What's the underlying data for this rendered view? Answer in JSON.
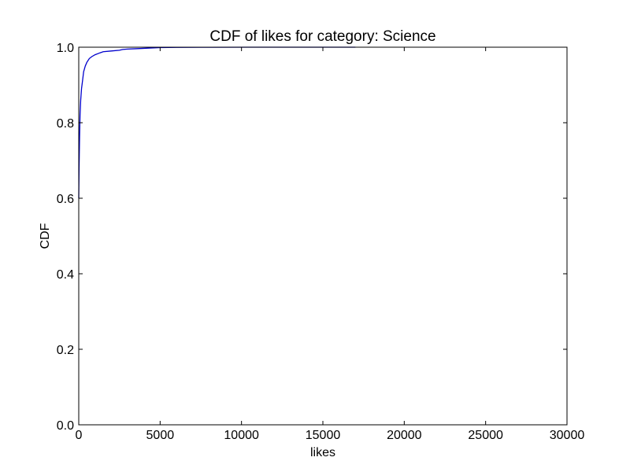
{
  "chart_data": {
    "type": "line",
    "title": "CDF of likes for category: Science",
    "xlabel": "likes",
    "ylabel": "CDF",
    "xlim": [
      0,
      30000
    ],
    "ylim": [
      0.0,
      1.0
    ],
    "grid": false,
    "x_ticks": [
      0,
      5000,
      10000,
      15000,
      20000,
      25000,
      30000
    ],
    "x_tick_labels": [
      "0",
      "5000",
      "10000",
      "15000",
      "20000",
      "25000",
      "30000"
    ],
    "y_ticks": [
      0.0,
      0.2,
      0.4,
      0.6,
      0.8,
      1.0
    ],
    "y_tick_labels": [
      "0.0",
      "0.2",
      "0.4",
      "0.6",
      "0.8",
      "1.0"
    ],
    "series": [
      {
        "color": "#0000cc",
        "x": [
          0,
          20,
          50,
          80,
          120,
          170,
          230,
          300,
          400,
          500,
          650,
          800,
          1000,
          1300,
          1500,
          2000,
          2500,
          2700,
          3000,
          3500,
          4000,
          4500,
          5000,
          6000,
          8000,
          10500,
          12000,
          17000
        ],
        "y": [
          0.6,
          0.68,
          0.76,
          0.82,
          0.86,
          0.89,
          0.91,
          0.935,
          0.95,
          0.96,
          0.97,
          0.975,
          0.98,
          0.985,
          0.988,
          0.99,
          0.992,
          0.994,
          0.995,
          0.996,
          0.997,
          0.998,
          0.999,
          0.9995,
          0.9998,
          1.0,
          1.0,
          1.0
        ]
      }
    ]
  }
}
